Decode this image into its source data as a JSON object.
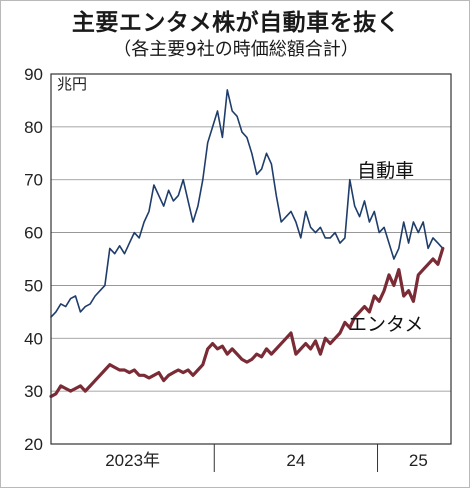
{
  "title": "主要エンタメ株が自動車を抜く",
  "subtitle": "（各主要9社の時価総額合計）",
  "chart_data": {
    "type": "line",
    "title": "主要エンタメ株が自動車を抜く",
    "subtitle": "（各主要9社の時価総額合計）",
    "y_unit": "兆円",
    "ylim": [
      20,
      90
    ],
    "y_ticks": [
      20,
      30,
      40,
      50,
      60,
      70,
      80,
      90
    ],
    "x_ticks": [
      {
        "label": "2023年",
        "x": 2023.5
      },
      {
        "label": "24",
        "x": 2024.5
      },
      {
        "label": "25",
        "x": 2025.25
      }
    ],
    "x_dividers": [
      2024.0,
      2025.0
    ],
    "xlim": [
      2023.0,
      2025.45
    ],
    "grid": true,
    "series": [
      {
        "name": "自動車",
        "color": "#1f3d6b",
        "x": [
          2023.0,
          2023.03,
          2023.06,
          2023.09,
          2023.12,
          2023.15,
          2023.18,
          2023.21,
          2023.24,
          2023.27,
          2023.3,
          2023.33,
          2023.36,
          2023.39,
          2023.42,
          2023.45,
          2023.48,
          2023.51,
          2023.54,
          2023.57,
          2023.6,
          2023.63,
          2023.66,
          2023.69,
          2023.72,
          2023.75,
          2023.78,
          2023.81,
          2023.84,
          2023.87,
          2023.9,
          2023.93,
          2023.96,
          2023.99,
          2024.02,
          2024.05,
          2024.08,
          2024.11,
          2024.14,
          2024.17,
          2024.2,
          2024.23,
          2024.26,
          2024.29,
          2024.32,
          2024.35,
          2024.38,
          2024.41,
          2024.44,
          2024.47,
          2024.5,
          2024.53,
          2024.56,
          2024.59,
          2024.62,
          2024.65,
          2024.68,
          2024.71,
          2024.74,
          2024.77,
          2024.8,
          2024.83,
          2024.86,
          2024.89,
          2024.92,
          2024.95,
          2024.98,
          2025.01,
          2025.04,
          2025.07,
          2025.1,
          2025.13,
          2025.16,
          2025.19,
          2025.22,
          2025.25,
          2025.28,
          2025.31,
          2025.34,
          2025.37,
          2025.4
        ],
        "values": [
          44,
          45,
          46.5,
          46,
          47.5,
          48,
          45,
          46,
          46.5,
          48,
          49,
          50,
          57,
          56,
          57.5,
          56,
          58,
          60,
          59,
          62,
          64,
          69,
          67,
          65,
          68,
          66,
          67,
          70,
          66,
          62,
          65,
          70,
          77,
          80,
          83,
          78,
          87,
          83,
          82,
          79,
          78,
          75,
          71,
          72,
          75,
          73,
          67,
          62,
          63,
          64,
          62,
          59,
          64,
          61,
          60,
          61,
          59,
          59,
          60,
          58,
          59,
          70,
          65,
          63,
          66,
          62,
          64,
          60,
          61,
          58,
          55,
          57,
          62,
          58,
          62,
          60,
          62,
          57,
          59,
          58,
          57
        ],
        "label_position": [
          2025.05,
          70.5
        ]
      },
      {
        "name": "エンタメ",
        "color": "#7a2b35",
        "x": [
          2023.0,
          2023.03,
          2023.06,
          2023.09,
          2023.12,
          2023.15,
          2023.18,
          2023.21,
          2023.24,
          2023.27,
          2023.3,
          2023.33,
          2023.36,
          2023.39,
          2023.42,
          2023.45,
          2023.48,
          2023.51,
          2023.54,
          2023.57,
          2023.6,
          2023.63,
          2023.66,
          2023.69,
          2023.72,
          2023.75,
          2023.78,
          2023.81,
          2023.84,
          2023.87,
          2023.9,
          2023.93,
          2023.96,
          2023.99,
          2024.02,
          2024.05,
          2024.08,
          2024.11,
          2024.14,
          2024.17,
          2024.2,
          2024.23,
          2024.26,
          2024.29,
          2024.32,
          2024.35,
          2024.38,
          2024.41,
          2024.44,
          2024.47,
          2024.5,
          2024.53,
          2024.56,
          2024.59,
          2024.62,
          2024.65,
          2024.68,
          2024.71,
          2024.74,
          2024.77,
          2024.8,
          2024.83,
          2024.86,
          2024.89,
          2024.92,
          2024.95,
          2024.98,
          2025.01,
          2025.04,
          2025.07,
          2025.1,
          2025.13,
          2025.16,
          2025.19,
          2025.22,
          2025.25,
          2025.28,
          2025.31,
          2025.34,
          2025.37,
          2025.4
        ],
        "values": [
          29,
          29.5,
          31,
          30.5,
          30,
          30.5,
          31,
          30,
          31,
          32,
          33,
          34,
          35,
          34.5,
          34,
          34,
          33.5,
          34,
          33,
          33,
          32.5,
          33,
          33.5,
          32,
          33,
          33.5,
          34,
          33.5,
          34,
          33,
          34,
          35,
          38,
          39,
          38,
          38.5,
          37,
          38,
          37,
          36,
          35.5,
          36,
          37,
          36.5,
          38,
          37,
          38,
          39,
          40,
          41,
          37,
          38,
          39,
          38,
          39.5,
          37,
          40,
          39,
          40,
          41,
          43,
          42,
          44,
          45,
          46,
          45,
          48,
          47,
          49,
          52,
          50,
          53,
          48,
          49,
          47,
          52,
          53,
          54,
          55,
          54,
          57
        ],
        "label_position": [
          2025.05,
          41.5
        ]
      }
    ]
  }
}
